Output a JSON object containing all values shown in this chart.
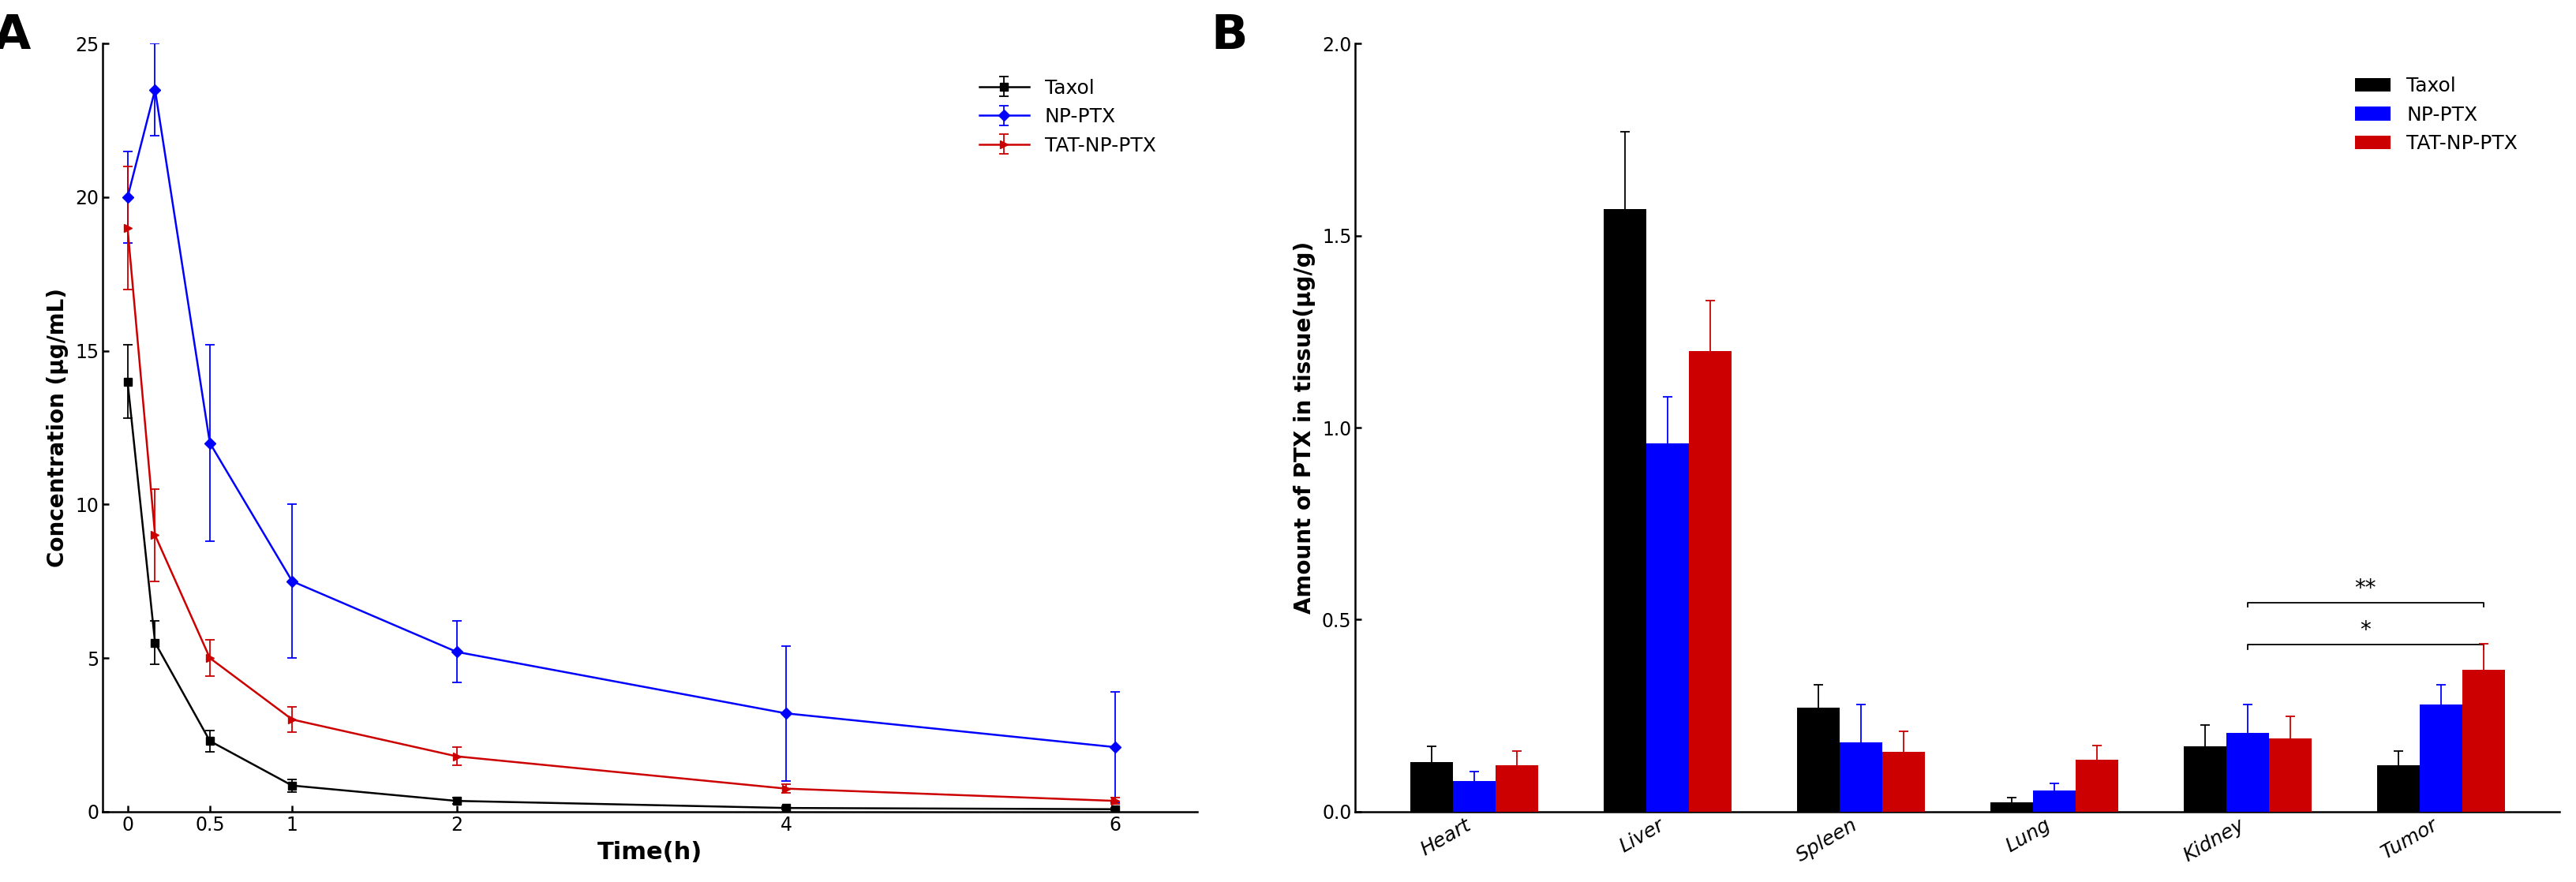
{
  "panel_A": {
    "title_label": "A",
    "xlabel": "Time(h)",
    "ylabel": "Concentration (μg/mL)",
    "ylim": [
      0,
      25
    ],
    "yticks": [
      0,
      5,
      10,
      15,
      20,
      25
    ],
    "xlim": [
      -0.15,
      6.5
    ],
    "xticks": [
      0,
      0.5,
      1,
      2,
      4,
      6
    ],
    "xticklabels": [
      "0",
      "0.5",
      "1",
      "2",
      "4",
      "6"
    ],
    "taxol": {
      "x": [
        0,
        0.167,
        0.5,
        1,
        2,
        4,
        6
      ],
      "y": [
        14.0,
        5.5,
        2.3,
        0.85,
        0.35,
        0.12,
        0.08
      ],
      "yerr": [
        1.2,
        0.7,
        0.35,
        0.2,
        0.1,
        0.05,
        0.04
      ],
      "color": "#000000",
      "label": "Taxol",
      "marker": "s"
    },
    "np_ptx": {
      "x": [
        0,
        0.167,
        0.5,
        1,
        2,
        4,
        6
      ],
      "y": [
        20.0,
        23.5,
        12.0,
        7.5,
        5.2,
        3.2,
        2.1
      ],
      "yerr": [
        1.5,
        1.5,
        3.2,
        2.5,
        1.0,
        2.2,
        1.8
      ],
      "color": "#0000FF",
      "label": "NP-PTX",
      "marker": "D"
    },
    "tat_np_ptx": {
      "x": [
        0,
        0.167,
        0.5,
        1,
        2,
        4,
        6
      ],
      "y": [
        19.0,
        9.0,
        5.0,
        3.0,
        1.8,
        0.75,
        0.35
      ],
      "yerr": [
        2.0,
        1.5,
        0.6,
        0.4,
        0.3,
        0.15,
        0.1
      ],
      "color": "#CC0000",
      "label": "TAT-NP-PTX",
      "marker": ">"
    }
  },
  "panel_B": {
    "title_label": "B",
    "ylabel": "Amount of PTX in tissue(μg/g)",
    "ylim": [
      0,
      2.0
    ],
    "yticks": [
      0.0,
      0.5,
      1.0,
      1.5,
      2.0
    ],
    "categories": [
      "Heart",
      "Liver",
      "Spleen",
      "Lung",
      "Kidney",
      "Tumor"
    ],
    "taxol": {
      "values": [
        0.13,
        1.57,
        0.27,
        0.025,
        0.17,
        0.12
      ],
      "errors": [
        0.04,
        0.2,
        0.06,
        0.012,
        0.055,
        0.038
      ],
      "color": "#000000",
      "label": "Taxol"
    },
    "np_ptx": {
      "values": [
        0.08,
        0.96,
        0.18,
        0.055,
        0.205,
        0.28
      ],
      "errors": [
        0.025,
        0.12,
        0.1,
        0.018,
        0.075,
        0.05
      ],
      "color": "#0000FF",
      "label": "NP-PTX"
    },
    "tat_np_ptx": {
      "values": [
        0.12,
        1.2,
        0.155,
        0.135,
        0.19,
        0.37
      ],
      "errors": [
        0.038,
        0.13,
        0.055,
        0.038,
        0.058,
        0.068
      ],
      "color": "#CC0000",
      "label": "TAT-NP-PTX"
    },
    "bar_width": 0.22,
    "sig_star1_y": 0.435,
    "sig_star2_y": 0.545,
    "sig_x1": 4.0,
    "sig_x2": 5.22
  }
}
